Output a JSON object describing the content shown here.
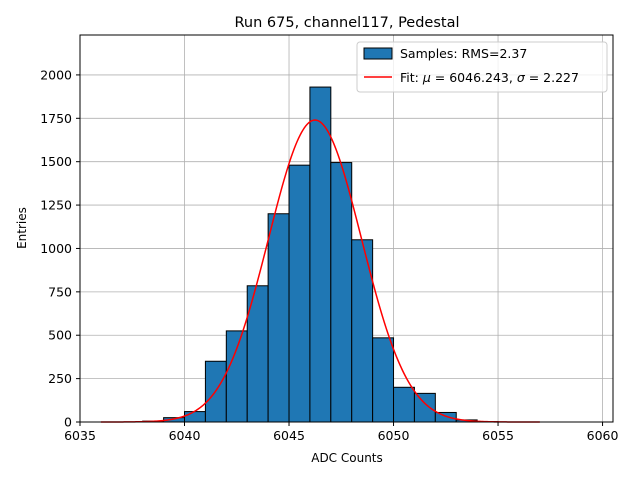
{
  "chart_data": {
    "type": "bar",
    "title": "Run 675, channel117, Pedestal",
    "xlabel": "ADC Counts",
    "ylabel": "Entries",
    "xlim": [
      6035,
      6060.5
    ],
    "ylim": [
      0,
      2230
    ],
    "xticks": [
      6035,
      6040,
      6045,
      6050,
      6055,
      6060
    ],
    "yticks": [
      0,
      250,
      500,
      750,
      1000,
      1250,
      1500,
      1750,
      2000
    ],
    "grid": true,
    "legend_position": "top-right",
    "bin_width": 1,
    "series": [
      {
        "name": "Samples: RMS=2.37",
        "kind": "histogram",
        "color": "#1f77b4",
        "edge_color": "#000000",
        "bins": [
          {
            "x0": 6036,
            "value": 0
          },
          {
            "x0": 6037,
            "value": 0
          },
          {
            "x0": 6038,
            "value": 5
          },
          {
            "x0": 6039,
            "value": 25
          },
          {
            "x0": 6040,
            "value": 60
          },
          {
            "x0": 6041,
            "value": 350
          },
          {
            "x0": 6042,
            "value": 525
          },
          {
            "x0": 6043,
            "value": 785
          },
          {
            "x0": 6044,
            "value": 1200
          },
          {
            "x0": 6045,
            "value": 1480
          },
          {
            "x0": 6046,
            "value": 1930
          },
          {
            "x0": 6047,
            "value": 1495
          },
          {
            "x0": 6048,
            "value": 1050
          },
          {
            "x0": 6049,
            "value": 485
          },
          {
            "x0": 6050,
            "value": 200
          },
          {
            "x0": 6051,
            "value": 165
          },
          {
            "x0": 6052,
            "value": 55
          },
          {
            "x0": 6053,
            "value": 12
          },
          {
            "x0": 6054,
            "value": 2
          }
        ]
      },
      {
        "name_prefix": "Fit: ",
        "name_mu_symbol": "μ",
        "name_mu_value": " = 6046.243, ",
        "name_sigma_symbol": "σ",
        "name_sigma_value": " = 2.227",
        "kind": "gaussian-fit",
        "color": "#ff0000",
        "mu": 6046.243,
        "sigma": 2.227,
        "amplitude": 1740,
        "x_range": [
          6036,
          6057
        ]
      }
    ]
  }
}
